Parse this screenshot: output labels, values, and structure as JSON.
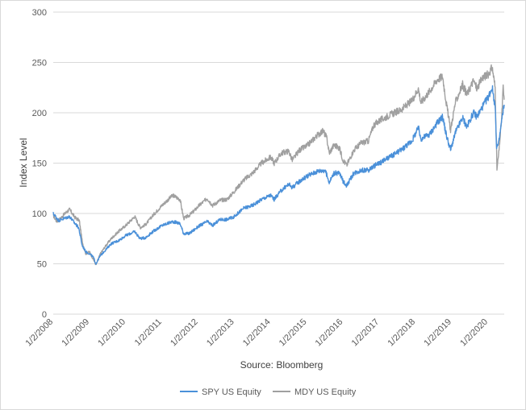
{
  "chart_data": {
    "type": "line",
    "ylabel": "Index Level",
    "xlabel": "Source: Bloomberg",
    "ylim": [
      0,
      300
    ],
    "yticks": [
      "0",
      "50",
      "100",
      "150",
      "200",
      "250",
      "300"
    ],
    "xticks": [
      "1/2/2008",
      "1/2/2009",
      "1/2/2010",
      "1/2/2011",
      "1/2/2012",
      "1/2/2013",
      "1/2/2014",
      "1/2/2015",
      "1/2/2016",
      "1/2/2017",
      "1/2/2018",
      "1/2/2019",
      "1/2/2020"
    ],
    "x_range_years": [
      2008.0,
      2020.45
    ],
    "grid": "horizontal",
    "legend": "bottom",
    "series": [
      {
        "name": "SPY US Equity",
        "color": "#4a90d9",
        "points": [
          [
            2008.0,
            100
          ],
          [
            2008.15,
            93
          ],
          [
            2008.3,
            95
          ],
          [
            2008.45,
            97
          ],
          [
            2008.6,
            90
          ],
          [
            2008.7,
            86
          ],
          [
            2008.8,
            68
          ],
          [
            2008.9,
            62
          ],
          [
            2009.0,
            60
          ],
          [
            2009.1,
            57
          ],
          [
            2009.18,
            50
          ],
          [
            2009.3,
            58
          ],
          [
            2009.45,
            64
          ],
          [
            2009.6,
            70
          ],
          [
            2009.8,
            73
          ],
          [
            2010.0,
            78
          ],
          [
            2010.25,
            82
          ],
          [
            2010.4,
            75
          ],
          [
            2010.55,
            76
          ],
          [
            2010.75,
            82
          ],
          [
            2011.0,
            88
          ],
          [
            2011.3,
            92
          ],
          [
            2011.5,
            90
          ],
          [
            2011.6,
            80
          ],
          [
            2011.75,
            80
          ],
          [
            2011.9,
            84
          ],
          [
            2012.0,
            87
          ],
          [
            2012.25,
            92
          ],
          [
            2012.4,
            88
          ],
          [
            2012.6,
            94
          ],
          [
            2012.8,
            94
          ],
          [
            2013.0,
            97
          ],
          [
            2013.25,
            105
          ],
          [
            2013.5,
            108
          ],
          [
            2013.75,
            114
          ],
          [
            2014.0,
            118
          ],
          [
            2014.1,
            114
          ],
          [
            2014.3,
            123
          ],
          [
            2014.5,
            129
          ],
          [
            2014.6,
            126
          ],
          [
            2014.8,
            132
          ],
          [
            2015.0,
            137
          ],
          [
            2015.3,
            142
          ],
          [
            2015.5,
            143
          ],
          [
            2015.62,
            131
          ],
          [
            2015.75,
            140
          ],
          [
            2015.9,
            140
          ],
          [
            2016.0,
            132
          ],
          [
            2016.1,
            128
          ],
          [
            2016.3,
            140
          ],
          [
            2016.5,
            143
          ],
          [
            2016.7,
            143
          ],
          [
            2016.85,
            147
          ],
          [
            2017.0,
            150
          ],
          [
            2017.3,
            156
          ],
          [
            2017.6,
            163
          ],
          [
            2017.9,
            172
          ],
          [
            2018.08,
            185
          ],
          [
            2018.15,
            174
          ],
          [
            2018.4,
            179
          ],
          [
            2018.6,
            190
          ],
          [
            2018.75,
            196
          ],
          [
            2018.85,
            178
          ],
          [
            2018.97,
            163
          ],
          [
            2019.1,
            180
          ],
          [
            2019.3,
            195
          ],
          [
            2019.42,
            186
          ],
          [
            2019.6,
            200
          ],
          [
            2019.7,
            196
          ],
          [
            2019.85,
            206
          ],
          [
            2020.0,
            215
          ],
          [
            2020.12,
            225
          ],
          [
            2020.2,
            206
          ],
          [
            2020.24,
            165
          ],
          [
            2020.3,
            170
          ],
          [
            2020.38,
            192
          ],
          [
            2020.45,
            208
          ]
        ]
      },
      {
        "name": "MDY US Equity",
        "color": "#a0a0a0",
        "points": [
          [
            2008.0,
            98
          ],
          [
            2008.1,
            92
          ],
          [
            2008.2,
            95
          ],
          [
            2008.35,
            101
          ],
          [
            2008.45,
            104
          ],
          [
            2008.6,
            96
          ],
          [
            2008.72,
            93
          ],
          [
            2008.8,
            72
          ],
          [
            2008.9,
            60
          ],
          [
            2009.0,
            62
          ],
          [
            2009.1,
            55
          ],
          [
            2009.18,
            49
          ],
          [
            2009.3,
            60
          ],
          [
            2009.45,
            68
          ],
          [
            2009.6,
            75
          ],
          [
            2009.8,
            82
          ],
          [
            2010.0,
            88
          ],
          [
            2010.25,
            97
          ],
          [
            2010.4,
            86
          ],
          [
            2010.55,
            89
          ],
          [
            2010.75,
            98
          ],
          [
            2011.0,
            108
          ],
          [
            2011.3,
            118
          ],
          [
            2011.5,
            114
          ],
          [
            2011.6,
            95
          ],
          [
            2011.75,
            98
          ],
          [
            2011.9,
            103
          ],
          [
            2012.0,
            107
          ],
          [
            2012.25,
            115
          ],
          [
            2012.4,
            108
          ],
          [
            2012.6,
            113
          ],
          [
            2012.8,
            114
          ],
          [
            2013.0,
            122
          ],
          [
            2013.25,
            133
          ],
          [
            2013.5,
            140
          ],
          [
            2013.75,
            150
          ],
          [
            2014.0,
            156
          ],
          [
            2014.1,
            150
          ],
          [
            2014.3,
            160
          ],
          [
            2014.5,
            162
          ],
          [
            2014.6,
            153
          ],
          [
            2014.8,
            163
          ],
          [
            2015.0,
            167
          ],
          [
            2015.3,
            178
          ],
          [
            2015.45,
            182
          ],
          [
            2015.55,
            175
          ],
          [
            2015.62,
            160
          ],
          [
            2015.75,
            168
          ],
          [
            2015.9,
            165
          ],
          [
            2016.0,
            153
          ],
          [
            2016.1,
            148
          ],
          [
            2016.3,
            163
          ],
          [
            2016.5,
            170
          ],
          [
            2016.7,
            172
          ],
          [
            2016.85,
            188
          ],
          [
            2017.0,
            192
          ],
          [
            2017.3,
            198
          ],
          [
            2017.6,
            203
          ],
          [
            2017.9,
            212
          ],
          [
            2018.08,
            224
          ],
          [
            2018.15,
            210
          ],
          [
            2018.4,
            222
          ],
          [
            2018.6,
            233
          ],
          [
            2018.75,
            236
          ],
          [
            2018.85,
            210
          ],
          [
            2018.97,
            183
          ],
          [
            2019.1,
            210
          ],
          [
            2019.3,
            228
          ],
          [
            2019.42,
            218
          ],
          [
            2019.6,
            232
          ],
          [
            2019.7,
            224
          ],
          [
            2019.85,
            235
          ],
          [
            2020.0,
            238
          ],
          [
            2020.12,
            245
          ],
          [
            2020.2,
            225
          ],
          [
            2020.25,
            144
          ],
          [
            2020.3,
            160
          ],
          [
            2020.38,
            195
          ],
          [
            2020.42,
            225
          ],
          [
            2020.45,
            213
          ]
        ]
      }
    ]
  }
}
